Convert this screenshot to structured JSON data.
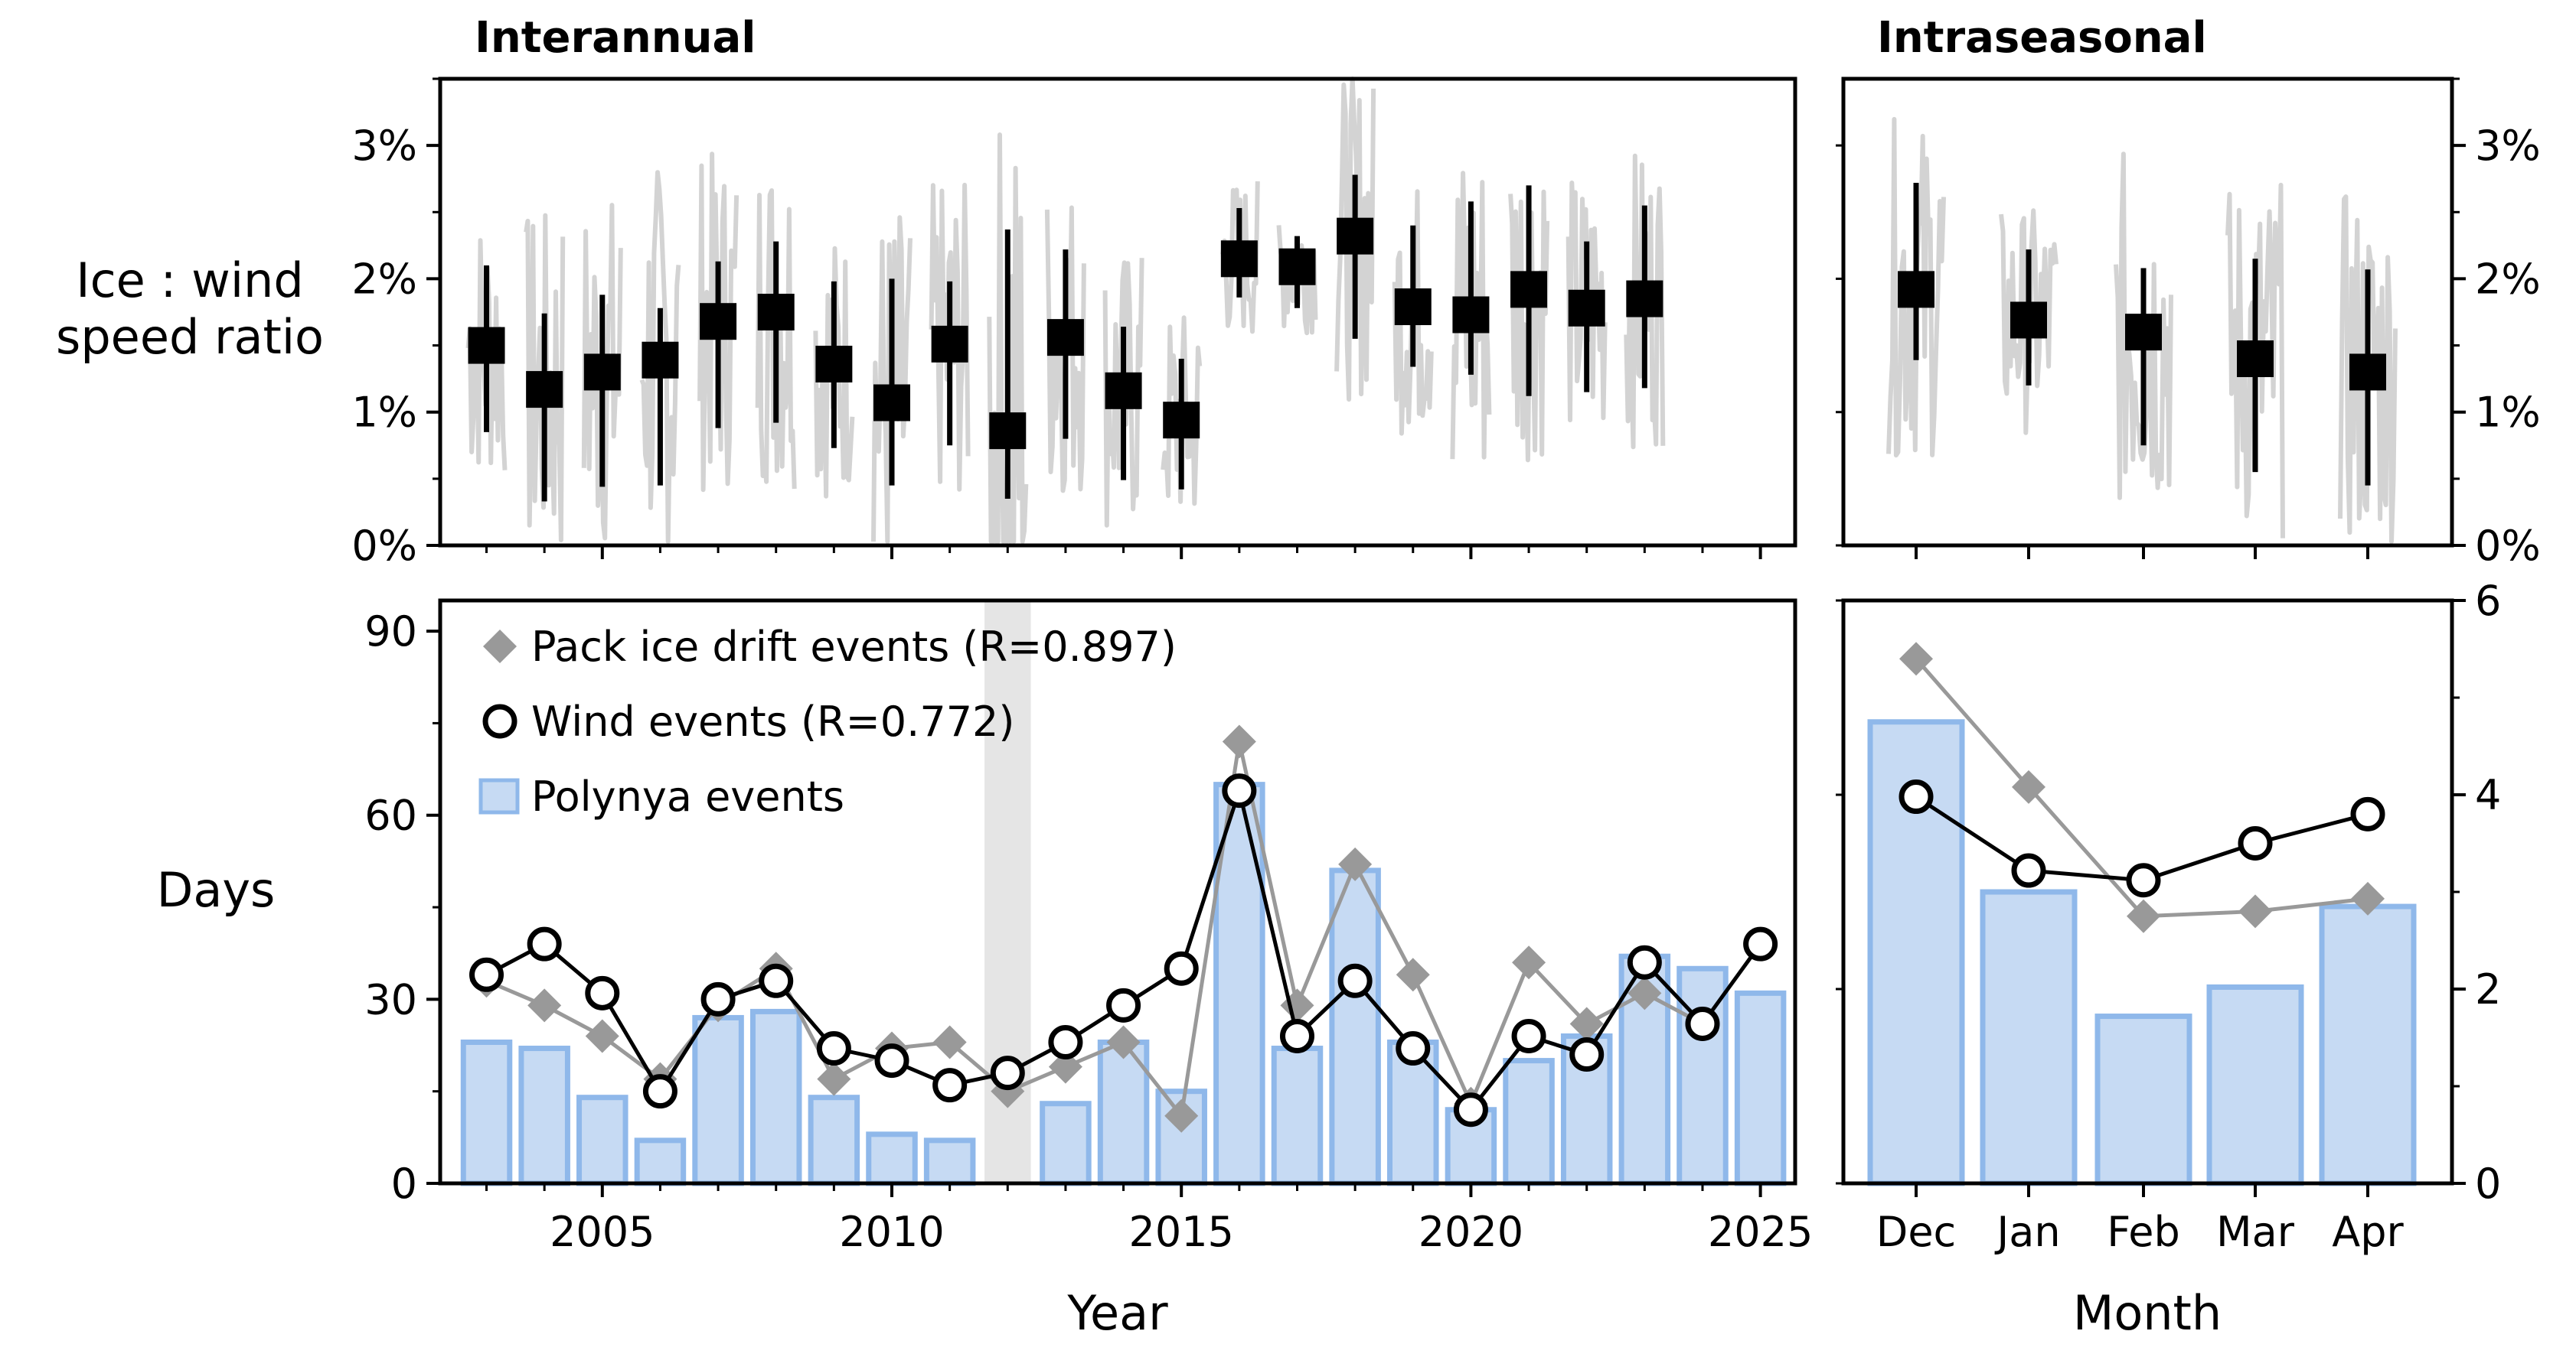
{
  "chart_data": [
    {
      "id": "interannual_ratio",
      "type": "scatter",
      "title": "Interannual",
      "xlabel": "",
      "ylabel": "Ice : wind speed ratio",
      "ylabel_lines": [
        "Ice : wind",
        "speed ratio"
      ],
      "xlim": [
        2002.2,
        2025.6
      ],
      "ylim": [
        0,
        3.5
      ],
      "y_tick_values": [
        0,
        1,
        2,
        3
      ],
      "y_tick_labels": [
        "0%",
        "1%",
        "2%",
        "3%"
      ],
      "series": [
        {
          "marker": "square",
          "color": "#000000",
          "x": [
            2003,
            2004,
            2005,
            2006,
            2007,
            2008,
            2009,
            2010,
            2011,
            2012,
            2013,
            2014,
            2015,
            2016,
            2017,
            2018,
            2019,
            2020,
            2021,
            2022,
            2023
          ],
          "y": [
            1.5,
            1.17,
            1.3,
            1.39,
            1.68,
            1.75,
            1.36,
            1.07,
            1.51,
            0.86,
            1.56,
            1.16,
            0.94,
            2.15,
            2.09,
            2.32,
            1.79,
            1.73,
            1.92,
            1.78,
            1.85
          ],
          "err_low": [
            0.85,
            0.33,
            0.44,
            0.45,
            0.88,
            0.92,
            0.73,
            0.45,
            0.75,
            0.35,
            0.8,
            0.49,
            0.42,
            1.86,
            1.78,
            1.55,
            1.34,
            1.28,
            1.12,
            1.15,
            1.18
          ],
          "err_high": [
            2.1,
            1.74,
            1.88,
            1.78,
            2.13,
            2.28,
            1.98,
            2.0,
            1.98,
            2.37,
            2.22,
            1.64,
            1.4,
            2.53,
            2.32,
            2.78,
            2.4,
            2.58,
            2.7,
            2.28,
            2.55
          ]
        }
      ]
    },
    {
      "id": "intraseasonal_ratio",
      "type": "scatter",
      "title": "Intraseasonal",
      "xlabel": "",
      "ylabel": "",
      "categories": [
        "Dec",
        "Jan",
        "Feb",
        "Mar",
        "Apr"
      ],
      "ylim": [
        0,
        3.5
      ],
      "y_tick_values": [
        0,
        1,
        2,
        3
      ],
      "y_tick_labels": [
        "0%",
        "1%",
        "2%",
        "3%"
      ],
      "series": [
        {
          "marker": "square",
          "color": "#000000",
          "y": [
            1.92,
            1.69,
            1.6,
            1.4,
            1.3
          ],
          "err_low": [
            1.39,
            1.2,
            0.75,
            0.55,
            0.45
          ],
          "err_high": [
            2.72,
            2.22,
            2.08,
            2.15,
            2.07
          ]
        }
      ]
    },
    {
      "id": "interannual_events",
      "type": "bar",
      "title": "",
      "xlabel": "Year",
      "ylabel": "Days",
      "xlim": [
        2002.2,
        2025.6
      ],
      "ylim": [
        0,
        95
      ],
      "y_tick_values": [
        0,
        30,
        60,
        90
      ],
      "x_tick_values": [
        2005,
        2010,
        2015,
        2020,
        2025
      ],
      "x_tick_labels": [
        "2005",
        "2010",
        "2015",
        "2020",
        "2025"
      ],
      "shaded_x": [
        2011.6,
        2012.4
      ],
      "legend_position": "top-left",
      "series": [
        {
          "name": "Pack ice drift events (R=0.897)",
          "type": "line",
          "marker": "diamond",
          "color": "#999999",
          "x": [
            2003,
            2004,
            2005,
            2006,
            2007,
            2008,
            2009,
            2010,
            2011,
            2012,
            2013,
            2014,
            2015,
            2016,
            2017,
            2018,
            2019,
            2020,
            2021,
            2022,
            2023,
            2024
          ],
          "y": [
            33,
            29,
            24,
            17,
            29,
            35,
            17,
            22,
            23,
            15,
            19,
            23,
            11,
            72,
            29,
            52,
            34,
            13,
            36,
            26,
            31,
            26
          ]
        },
        {
          "name": "Wind events (R=0.772)",
          "type": "line",
          "marker": "circle",
          "color": "#000000",
          "x": [
            2003,
            2004,
            2005,
            2006,
            2007,
            2008,
            2009,
            2010,
            2011,
            2012,
            2013,
            2014,
            2015,
            2016,
            2017,
            2018,
            2019,
            2020,
            2021,
            2022,
            2023,
            2024,
            2025
          ],
          "y": [
            34,
            39,
            31,
            15,
            30,
            33,
            22,
            20,
            16,
            18,
            23,
            29,
            35,
            64,
            24,
            33,
            22,
            12,
            24,
            21,
            36,
            26,
            39
          ]
        },
        {
          "name": "Polynya events",
          "type": "bar",
          "color": "#c6daf3",
          "edge_color": "#8fb8ea",
          "x": [
            2003,
            2004,
            2005,
            2006,
            2007,
            2008,
            2009,
            2010,
            2011,
            2013,
            2014,
            2015,
            2016,
            2017,
            2018,
            2019,
            2020,
            2021,
            2022,
            2023,
            2024,
            2025
          ],
          "values": [
            23,
            22,
            14,
            7,
            27,
            28,
            14,
            8,
            7,
            13,
            23,
            15,
            65,
            22,
            51,
            23,
            12,
            20,
            24,
            37,
            35,
            31
          ]
        }
      ]
    },
    {
      "id": "intraseasonal_events",
      "type": "bar",
      "title": "",
      "xlabel": "Month",
      "ylabel": "",
      "categories": [
        "Dec",
        "Jan",
        "Feb",
        "Mar",
        "Apr"
      ],
      "ylim": [
        0,
        6
      ],
      "y_tick_values": [
        0,
        2,
        4,
        6
      ],
      "series": [
        {
          "name": "Polynya events",
          "type": "bar",
          "color": "#c6daf3",
          "edge_color": "#8fb8ea",
          "values": [
            4.75,
            3.0,
            1.72,
            2.02,
            2.85
          ]
        },
        {
          "name": "Pack ice drift events",
          "type": "line",
          "marker": "diamond",
          "color": "#999999",
          "values": [
            5.4,
            4.08,
            2.75,
            2.8,
            2.93
          ]
        },
        {
          "name": "Wind events",
          "type": "line",
          "marker": "circle",
          "color": "#000000",
          "values": [
            3.98,
            3.22,
            3.12,
            3.5,
            3.8
          ]
        }
      ]
    }
  ]
}
